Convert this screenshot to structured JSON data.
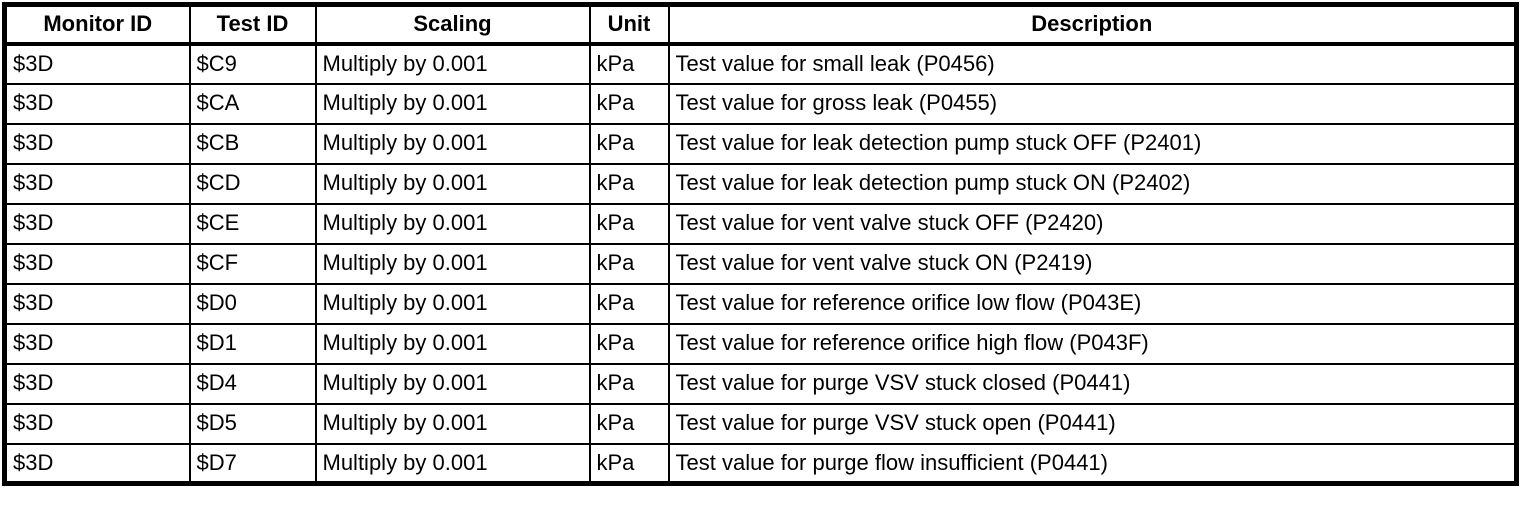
{
  "table": {
    "columns": [
      {
        "label": "Monitor ID"
      },
      {
        "label": "Test ID"
      },
      {
        "label": "Scaling"
      },
      {
        "label": "Unit"
      },
      {
        "label": "Description"
      }
    ],
    "rows": [
      {
        "monitor_id": "$3D",
        "test_id": "$C9",
        "scaling": "Multiply by 0.001",
        "unit": "kPa",
        "description": "Test value for small leak (P0456)"
      },
      {
        "monitor_id": "$3D",
        "test_id": "$CA",
        "scaling": "Multiply by 0.001",
        "unit": "kPa",
        "description": "Test value for gross leak (P0455)"
      },
      {
        "monitor_id": "$3D",
        "test_id": "$CB",
        "scaling": "Multiply by 0.001",
        "unit": "kPa",
        "description": "Test value for leak detection pump stuck OFF (P2401)"
      },
      {
        "monitor_id": "$3D",
        "test_id": "$CD",
        "scaling": "Multiply by 0.001",
        "unit": "kPa",
        "description": "Test value for leak detection pump stuck ON (P2402)"
      },
      {
        "monitor_id": "$3D",
        "test_id": "$CE",
        "scaling": "Multiply by 0.001",
        "unit": "kPa",
        "description": "Test value for vent valve stuck OFF (P2420)"
      },
      {
        "monitor_id": "$3D",
        "test_id": "$CF",
        "scaling": "Multiply by 0.001",
        "unit": "kPa",
        "description": "Test value for vent valve stuck ON (P2419)"
      },
      {
        "monitor_id": "$3D",
        "test_id": "$D0",
        "scaling": "Multiply by 0.001",
        "unit": "kPa",
        "description": "Test value for reference orifice low flow (P043E)"
      },
      {
        "monitor_id": "$3D",
        "test_id": "$D1",
        "scaling": "Multiply by 0.001",
        "unit": "kPa",
        "description": "Test value for reference orifice high flow (P043F)"
      },
      {
        "monitor_id": "$3D",
        "test_id": "$D4",
        "scaling": "Multiply by 0.001",
        "unit": "kPa",
        "description": "Test value for purge VSV stuck closed (P0441)"
      },
      {
        "monitor_id": "$3D",
        "test_id": "$D5",
        "scaling": "Multiply by 0.001",
        "unit": "kPa",
        "description": "Test value for purge VSV stuck open (P0441)"
      },
      {
        "monitor_id": "$3D",
        "test_id": "$D7",
        "scaling": "Multiply by 0.001",
        "unit": "kPa",
        "description": "Test value for purge flow insufficient (P0441)"
      }
    ]
  },
  "colors": {
    "border": "#000000",
    "background": "#ffffff",
    "text": "#000000"
  }
}
